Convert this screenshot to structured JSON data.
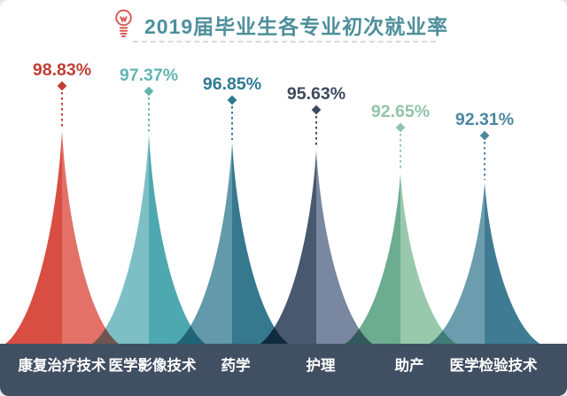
{
  "header": {
    "title": "2019届毕业生各专业初次就业率",
    "icon": "lightbulb-icon",
    "title_color": "#4E8F9B",
    "icon_color": "#D9534F"
  },
  "chart_data": {
    "type": "area",
    "style": "stylized peak/mountain infographic, one spike per category, no axes",
    "title": "2019届毕业生各专业初次就业率",
    "categories": [
      "康复治疗技术",
      "医学影像技术",
      "药学",
      "护理",
      "助产",
      "医学检验技术"
    ],
    "values": [
      98.83,
      97.37,
      96.85,
      95.63,
      92.65,
      92.31
    ],
    "value_labels": [
      "98.83%",
      "97.37%",
      "96.85%",
      "95.63%",
      "92.65%",
      "92.31%"
    ],
    "series": [
      {
        "name": "康复治疗技术",
        "value": 98.83,
        "label": "98.83%",
        "color_left": "#D94E43",
        "color_right": "#E37167",
        "accent": "#C03F35"
      },
      {
        "name": "医学影像技术",
        "value": 97.37,
        "label": "97.37%",
        "color_left": "#7DBFC5",
        "color_right": "#4EA8B0",
        "accent": "#62B5B3"
      },
      {
        "name": "药学",
        "value": 96.85,
        "label": "96.85%",
        "color_left": "#6399AA",
        "color_right": "#36798F",
        "accent": "#2E7A92"
      },
      {
        "name": "护理",
        "value": 95.63,
        "label": "95.63%",
        "color_left": "#48596F",
        "color_right": "#7A87A1",
        "accent": "#3D4A5E"
      },
      {
        "name": "助产",
        "value": 92.65,
        "label": "92.65%",
        "color_left": "#6CAC90",
        "color_right": "#99C9AD",
        "accent": "#92C5A8"
      },
      {
        "name": "医学检验技术",
        "value": 92.31,
        "label": "92.31%",
        "color_left": "#6B9DAE",
        "color_right": "#3F7C93",
        "accent": "#4C87A0"
      }
    ],
    "annotation_marker": "diamond on dashed vertical leader line above each peak",
    "baseline_bar_color": "#414F63",
    "category_text_color": "#FFFFFF",
    "background_color": "#FFFFFF",
    "grid": false,
    "legend_position": "none",
    "ylim": [
      92,
      99
    ]
  }
}
